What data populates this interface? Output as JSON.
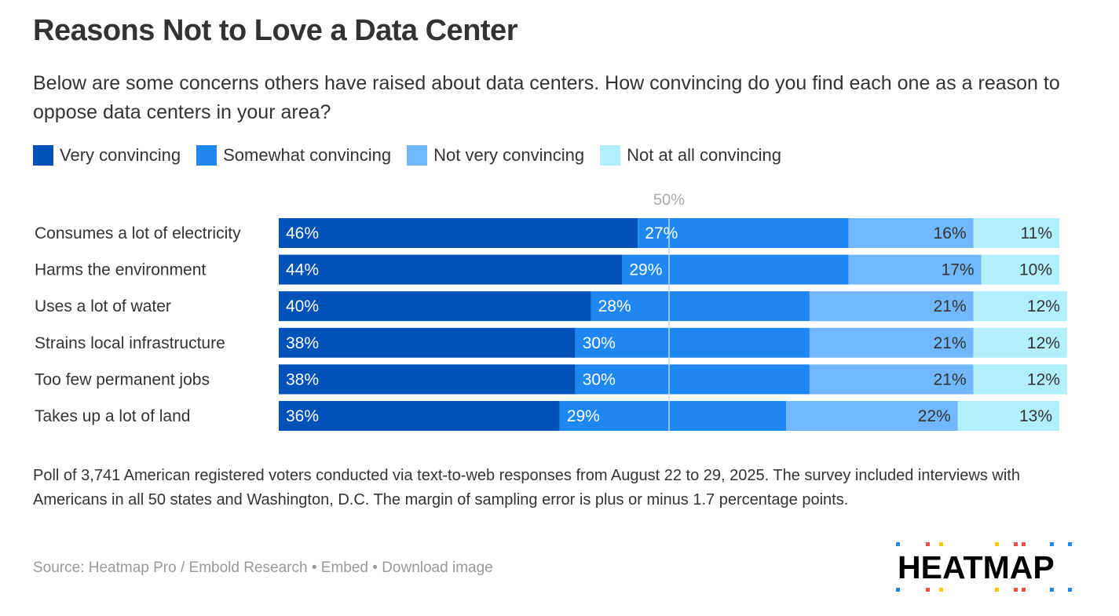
{
  "title": "Reasons Not to Love a Data Center",
  "subtitle": "Below are some concerns others have raised about data centers. How convincing do you find each one as a reason to oppose data centers in your area?",
  "footnote": "Poll of 3,741 American registered voters conducted via text-to-web responses from August 22 to 29, 2025. The survey included interviews with Americans in all 50 states and Washington, D.C. The margin of sampling error is plus or minus 1.7 percentage points.",
  "source": {
    "text": "Source: Heatmap Pro / Embold Research",
    "embed": "• Embed",
    "download": "• Download image"
  },
  "logo": "HEATMAP",
  "chart_data": {
    "type": "bar",
    "orientation": "horizontal-stacked",
    "title": "Reasons Not to Love a Data Center",
    "reference_line": {
      "value": 50,
      "label": "50%"
    },
    "legend_position": "top-left",
    "categories": [
      "Consumes a lot of electricity",
      "Harms the environment",
      "Uses a lot of water",
      "Strains local infrastructure",
      "Too few permanent jobs",
      "Takes up a lot of land"
    ],
    "series": [
      {
        "name": "Very convincing",
        "color": "#0052b8",
        "values": [
          46,
          44,
          40,
          38,
          38,
          36
        ]
      },
      {
        "name": "Somewhat convincing",
        "color": "#1f87f2",
        "values": [
          27,
          29,
          28,
          30,
          30,
          29
        ]
      },
      {
        "name": "Not very convincing",
        "color": "#70b8fb",
        "values": [
          16,
          17,
          21,
          21,
          21,
          22
        ]
      },
      {
        "name": "Not at all convincing",
        "color": "#b1f0fb",
        "values": [
          11,
          10,
          12,
          12,
          12,
          13
        ]
      }
    ],
    "xlim": [
      0,
      100
    ]
  }
}
